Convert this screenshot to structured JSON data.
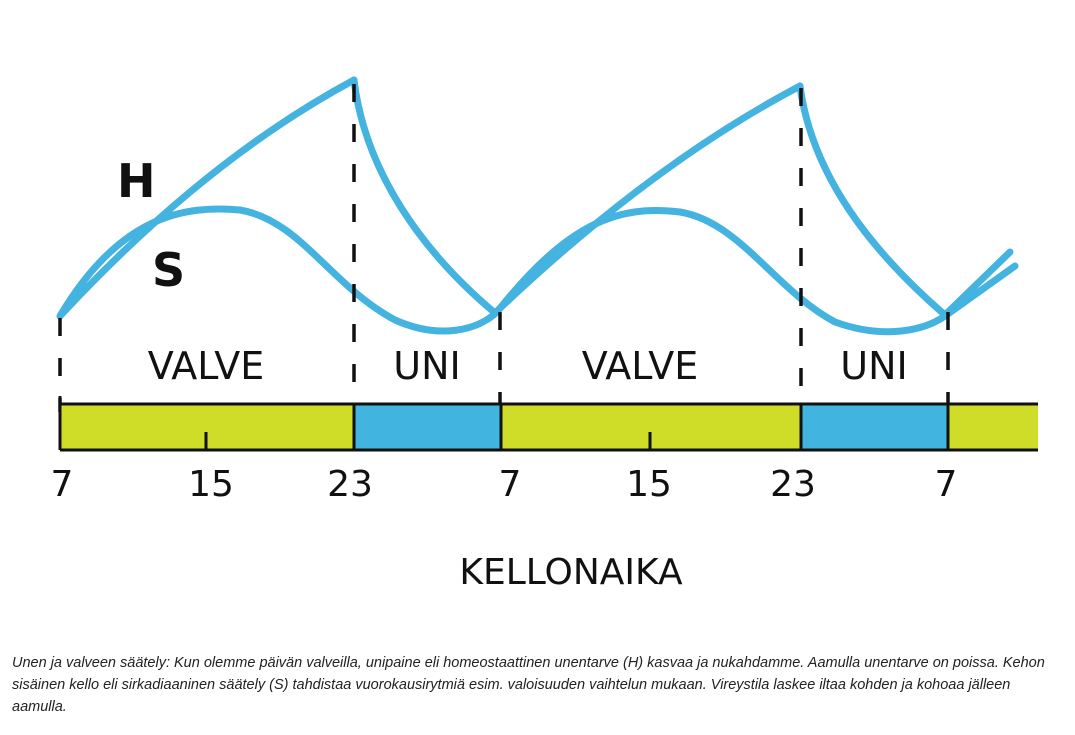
{
  "diagram": {
    "curve_labels": {
      "h": "H",
      "s": "S"
    },
    "phases": [
      {
        "label": "VALVE",
        "state": "awake"
      },
      {
        "label": "UNI",
        "state": "sleep"
      },
      {
        "label": "VALVE",
        "state": "awake"
      },
      {
        "label": "UNI",
        "state": "sleep"
      }
    ],
    "ticks": [
      "7",
      "15",
      "23",
      "7",
      "15",
      "23",
      "7"
    ],
    "axis_title": "KELLONAIKA",
    "colors": {
      "curve": "#45b3e0",
      "awake_bar": "#cfdd28",
      "sleep_bar": "#41b5e0",
      "ink": "#111111"
    }
  },
  "caption": "Unen ja valveen säätely: Kun olemme päivän valveilla, unipaine eli homeostaattinen unentarve (H) kasvaa ja nukahdamme. Aamulla unentarve on poissa. Kehon sisäinen kello eli sirkadiaaninen säätely (S) tahdistaa vuorokausirytmiä esim. valoisuuden vaihtelun mukaan. Vireystila laskee iltaa kohden ja kohoaa jälleen aamulla."
}
